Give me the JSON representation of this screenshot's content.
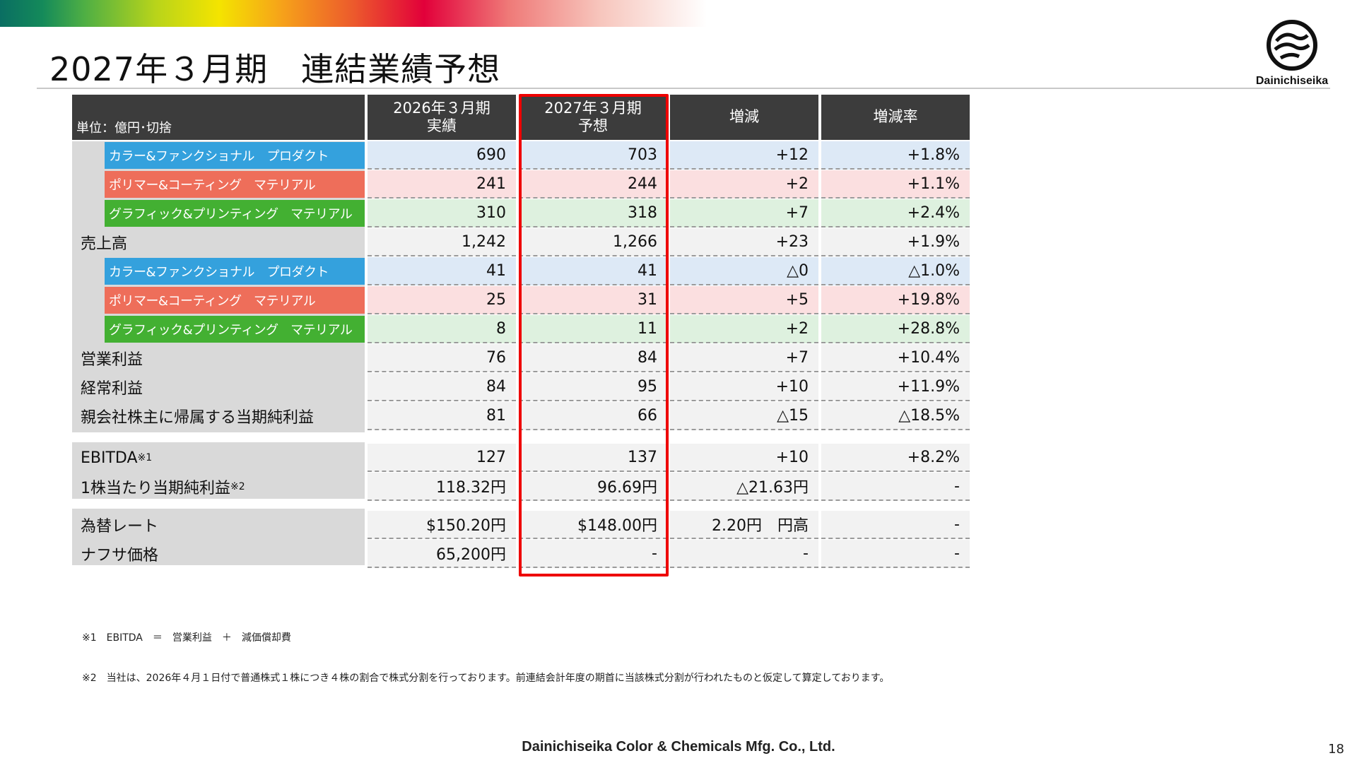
{
  "slide": {
    "title": "2027年３月期　連結業績予想",
    "logo_text": "Dainichiseika",
    "footer": "Dainichiseika Color & Chemicals Mfg. Co., Ltd.",
    "page_number": "18",
    "brand_colors": {
      "blue": "#34a1dd",
      "red": "#ee6e5a",
      "green": "#43b032",
      "highlight": "#ee0000",
      "header": "#3c3c3c"
    }
  },
  "table": {
    "unit_label": "単位：億円･切捨",
    "headers": [
      {
        "line1": "2026年３月期",
        "line2": "実績"
      },
      {
        "line1": "2027年３月期",
        "line2": "予想"
      },
      {
        "line1": "増減",
        "line2": ""
      },
      {
        "line1": "増減率",
        "line2": ""
      }
    ],
    "rows": [
      {
        "label": "カラー&ファンクショナル　プロダクト",
        "values": [
          "690",
          "703",
          "+12",
          "+1.8%"
        ]
      },
      {
        "label": "ポリマー&コーティング　マテリアル",
        "values": [
          "241",
          "244",
          "+2",
          "+1.1%"
        ]
      },
      {
        "label": "グラフィック&プリンティング　マテリアル",
        "values": [
          "310",
          "318",
          "+7",
          "+2.4%"
        ]
      },
      {
        "label": "売上高",
        "values": [
          "1,242",
          "1,266",
          "+23",
          "+1.9%"
        ]
      },
      {
        "label": "カラー&ファンクショナル　プロダクト",
        "values": [
          "41",
          "41",
          "△0",
          "△1.0%"
        ]
      },
      {
        "label": "ポリマー&コーティング　マテリアル",
        "values": [
          "25",
          "31",
          "+5",
          "+19.8%"
        ]
      },
      {
        "label": "グラフィック&プリンティング　マテリアル",
        "values": [
          "8",
          "11",
          "+2",
          "+28.8%"
        ]
      },
      {
        "label": "営業利益",
        "values": [
          "76",
          "84",
          "+7",
          "+10.4%"
        ]
      },
      {
        "label": "経常利益",
        "values": [
          "84",
          "95",
          "+10",
          "+11.9%"
        ]
      },
      {
        "label": "親会社株主に帰属する当期純利益",
        "values": [
          "81",
          "66",
          "△15",
          "△18.5%"
        ]
      },
      {
        "label": "EBITDA",
        "note": "※1",
        "values": [
          "127",
          "137",
          "+10",
          "+8.2%"
        ]
      },
      {
        "label": "1株当たり当期純利益",
        "note": "※2",
        "values": [
          "118.32円",
          "96.69円",
          "△21.63円",
          "-"
        ]
      },
      {
        "label": "為替レート",
        "values": [
          "$150.20円",
          "$148.00円",
          "2.20円　円高",
          "-"
        ]
      },
      {
        "label": "ナフサ価格",
        "values": [
          "65,200円",
          "-",
          "-",
          "-"
        ]
      }
    ]
  },
  "notes": [
    "※1　EBITDA　＝　営業利益　＋　減価償却費",
    "※2　当社は、2026年４月１日付で普通株式１株につき４株の割合で株式分割を行っております。前連結会計年度の期首に当該株式分割が行われたものと仮定して算定しております。"
  ]
}
